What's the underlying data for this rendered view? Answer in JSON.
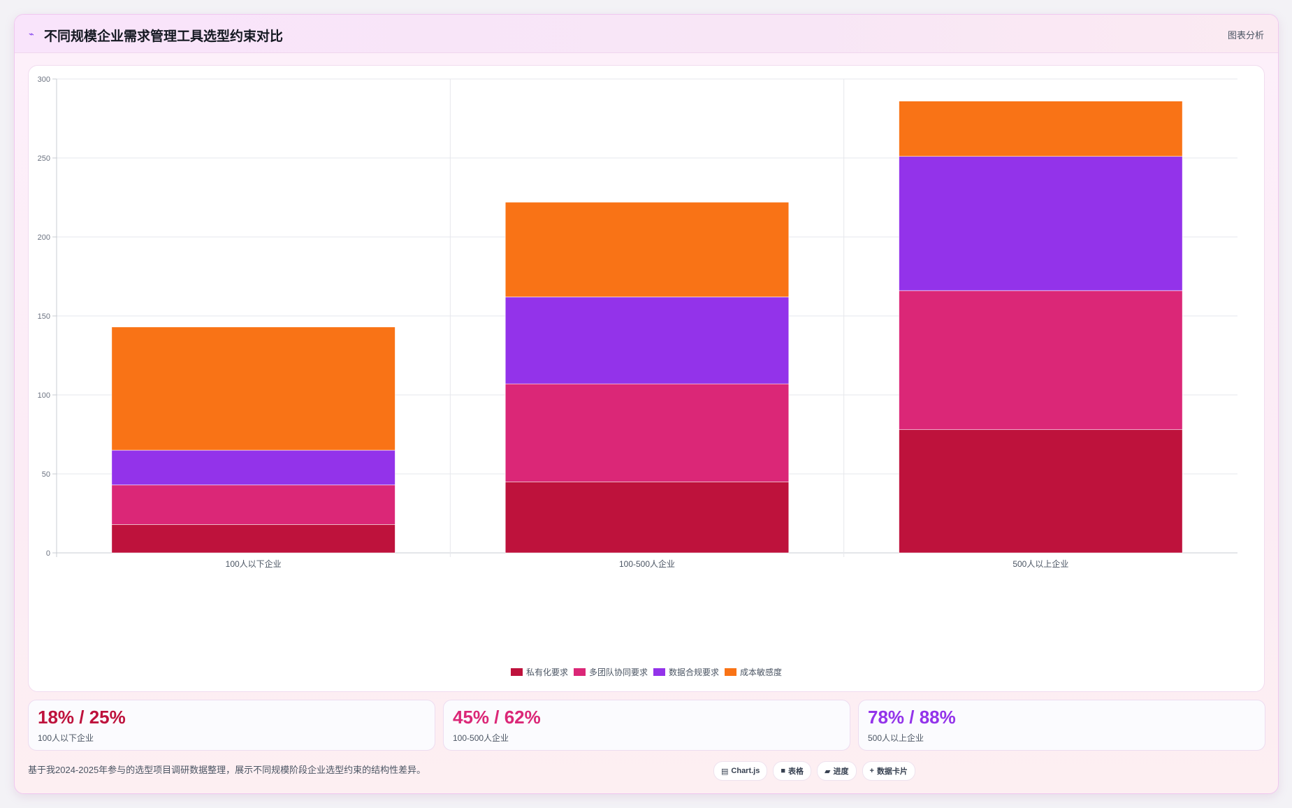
{
  "header": {
    "icon": "chart-line-icon",
    "title": "不同规模企业需求管理工具选型约束对比",
    "analysis_label": "图表分析"
  },
  "chart_data": {
    "type": "bar",
    "stacked": true,
    "categories": [
      "100人以下企业",
      "100-500人企业",
      "500人以上企业"
    ],
    "series": [
      {
        "name": "私有化要求",
        "color": "#be123c",
        "values": [
          18,
          45,
          78
        ]
      },
      {
        "name": "多团队协同要求",
        "color": "#db2777",
        "values": [
          25,
          62,
          88
        ]
      },
      {
        "name": "数据合规要求",
        "color": "#9333ea",
        "values": [
          22,
          55,
          85
        ]
      },
      {
        "name": "成本敏感度",
        "color": "#f97316",
        "values": [
          78,
          60,
          35
        ]
      }
    ],
    "ylim": [
      0,
      300
    ],
    "yticks": [
      0,
      50,
      100,
      150,
      200,
      250,
      300
    ],
    "grid": true,
    "legend": "bottom"
  },
  "stats": [
    {
      "value": "18% / 25%",
      "label": "100人以下企业",
      "color": "#be123c"
    },
    {
      "value": "45% / 62%",
      "label": "100-500人企业",
      "color": "#db2777"
    },
    {
      "value": "78% / 88%",
      "label": "500人以上企业",
      "color": "#9333ea"
    }
  ],
  "footer": {
    "note": "基于我2024-2025年参与的选型项目调研数据整理，展示不同规模阶段企业选型约束的结构性差异。",
    "tags": [
      {
        "icon": "chart-icon",
        "glyph": "▤",
        "label": "Chart.js"
      },
      {
        "icon": "table-icon",
        "glyph": "■",
        "label": "表格"
      },
      {
        "icon": "progress-icon",
        "glyph": "▰",
        "label": "进度"
      },
      {
        "icon": "card-icon",
        "glyph": "+",
        "label": "数据卡片"
      }
    ]
  }
}
